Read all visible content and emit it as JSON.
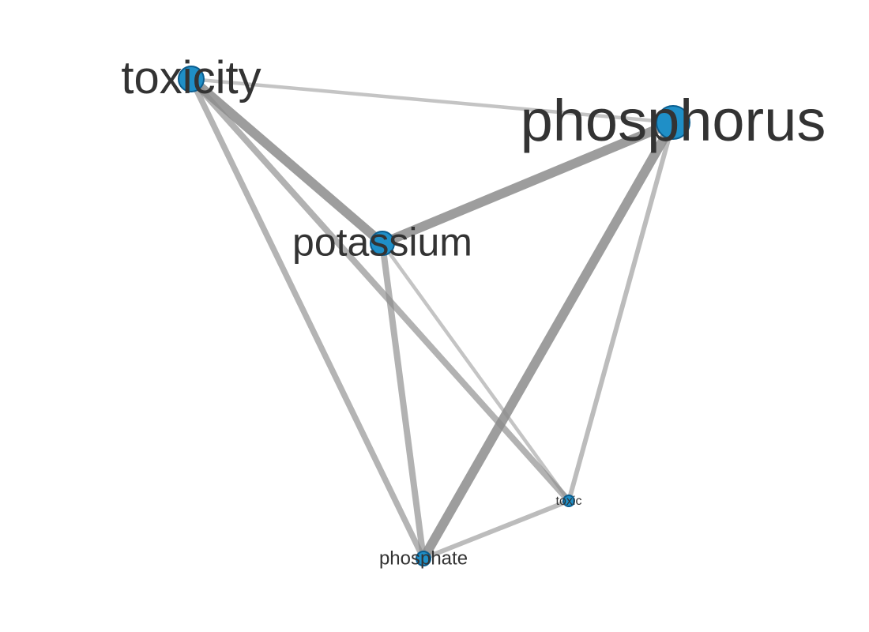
{
  "graph": {
    "node_fill": "#1f8fc7",
    "node_stroke": "#0a5d8f",
    "label_color": "#333333",
    "edge_color": "#8c8c8c",
    "nodes": [
      {
        "id": "toxicity",
        "label": "toxicity",
        "weight": 0.55
      },
      {
        "id": "phosphorus",
        "label": "phosphorus",
        "weight": 1.0
      },
      {
        "id": "potassium",
        "label": "potassium",
        "weight": 0.5
      },
      {
        "id": "phosphate",
        "label": "phosphate",
        "weight": 0.1
      },
      {
        "id": "toxic",
        "label": "toxic",
        "weight": 0.03
      }
    ],
    "edges": [
      {
        "source": "toxicity",
        "target": "phosphorus",
        "weight": 0.25
      },
      {
        "source": "toxicity",
        "target": "potassium",
        "weight": 1.0
      },
      {
        "source": "toxicity",
        "target": "phosphate",
        "weight": 0.55
      },
      {
        "source": "toxicity",
        "target": "toxic",
        "weight": 0.6
      },
      {
        "source": "phosphorus",
        "target": "potassium",
        "weight": 1.0
      },
      {
        "source": "phosphorus",
        "target": "phosphate",
        "weight": 1.0
      },
      {
        "source": "phosphorus",
        "target": "toxic",
        "weight": 0.4
      },
      {
        "source": "potassium",
        "target": "phosphate",
        "weight": 0.6
      },
      {
        "source": "potassium",
        "target": "toxic",
        "weight": 0.25
      },
      {
        "source": "phosphate",
        "target": "toxic",
        "weight": 0.4
      }
    ]
  }
}
